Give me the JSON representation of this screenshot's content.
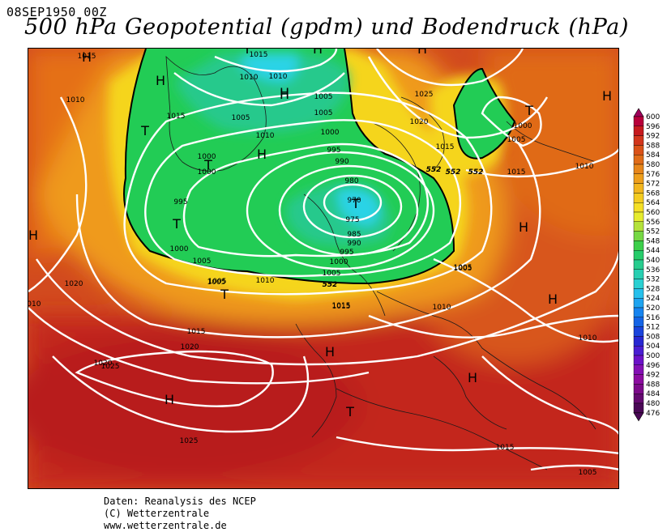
{
  "header": {
    "date": "08SEP1950 00Z",
    "title": "500 hPa Geopotential (gpdm) und Bodendruck (hPa)"
  },
  "colors": {
    "purple": "#5b005b",
    "blue": "#1e3cd6",
    "cyan": "#23d0e3",
    "green": "#28d24b",
    "yellow": "#f4e62a",
    "orange": "#e87a18",
    "red": "#c21e1e"
  },
  "legend": {
    "levels": [
      "600",
      "596",
      "592",
      "588",
      "584",
      "580",
      "576",
      "572",
      "568",
      "564",
      "560",
      "556",
      "552",
      "548",
      "544",
      "540",
      "536",
      "532",
      "528",
      "524",
      "520",
      "516",
      "512",
      "508",
      "504",
      "500",
      "496",
      "492",
      "488",
      "484",
      "480",
      "476"
    ]
  },
  "pressure_centers": [
    {
      "label": "H"
    },
    {
      "label": "H"
    },
    {
      "label": "H"
    },
    {
      "label": "T"
    },
    {
      "label": "H"
    },
    {
      "label": "T"
    },
    {
      "label": "T"
    },
    {
      "label": "T"
    },
    {
      "label": "T"
    },
    {
      "label": "H"
    },
    {
      "label": "H"
    },
    {
      "label": "H"
    },
    {
      "label": "H"
    },
    {
      "label": "H"
    },
    {
      "label": "H"
    },
    {
      "label": "H"
    },
    {
      "label": "T"
    },
    {
      "label": "H"
    },
    {
      "label": "H"
    },
    {
      "label": "T"
    },
    {
      "label": "T"
    },
    {
      "label": "H"
    }
  ],
  "isobar_labels": [
    "1015",
    "1010",
    "1015",
    "1010",
    "1015",
    "1005",
    "1010",
    "1005",
    "1000",
    "995",
    "990",
    "980",
    "970",
    "975",
    "985",
    "990",
    "995",
    "1000",
    "1005",
    "1005",
    "1000",
    "1000",
    "995",
    "1000",
    "1005",
    "1020",
    "1025",
    "1020",
    "1015",
    "1000",
    "1005",
    "1015",
    "1010",
    "1020",
    "1005",
    "1010",
    "1015",
    "1010",
    "1005",
    "1010",
    "1010",
    "1015",
    "1020",
    "1025",
    "1025",
    "1015",
    "1005",
    "1005",
    "1005",
    "1015",
    "1010"
  ],
  "geopotential_labels": [
    "552",
    "552",
    "552",
    "552"
  ],
  "footer": {
    "line1": "Daten: Reanalysis des NCEP",
    "line2": "(C) Wetterzentrale",
    "line3": "www.wetterzentrale.de"
  }
}
